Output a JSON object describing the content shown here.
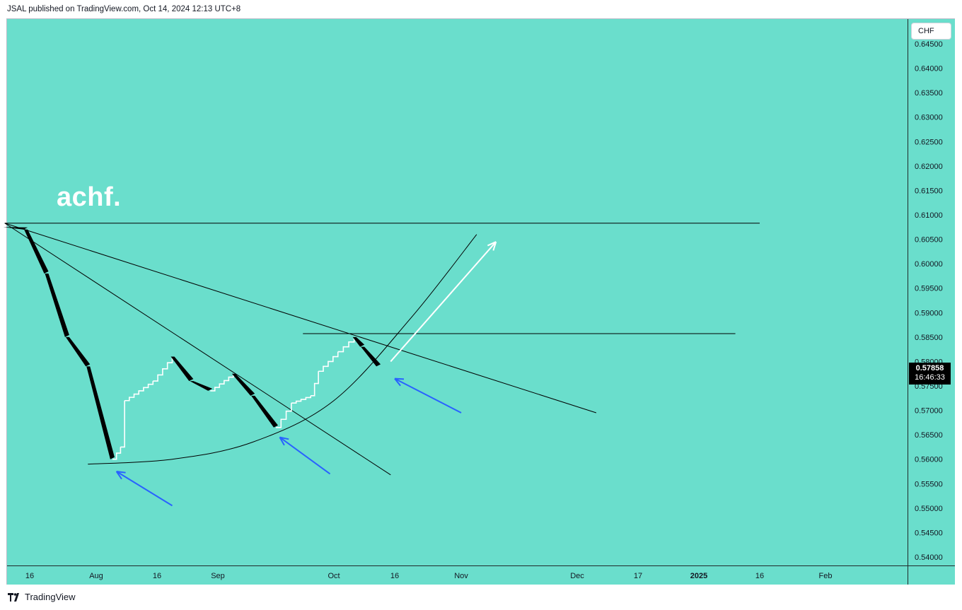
{
  "header": {
    "published_text": "JSAL published on TradingView.com, Oct 14, 2024 12:13 UTC+8"
  },
  "symbol_label": "achf.",
  "currency": "CHF",
  "last_price": {
    "value": "0.57858",
    "countdown": "16:46:33"
  },
  "footer": {
    "brand": "TradingView",
    "logo_icon": "tradingview-logo-icon"
  },
  "colors": {
    "background": "#6adecc",
    "candle": "#000000",
    "step_line": "#ffffff",
    "trend_line": "#000000",
    "blue_arrow": "#2962ff",
    "white_arrow": "#ffffff"
  },
  "chart_data": {
    "type": "line",
    "title": "",
    "xlabel": "",
    "ylabel": "",
    "y_axis_ticks": [
      "0.64500",
      "0.64000",
      "0.63500",
      "0.63000",
      "0.62500",
      "0.62000",
      "0.61500",
      "0.61000",
      "0.60500",
      "0.60000",
      "0.59500",
      "0.59000",
      "0.58500",
      "0.58000",
      "0.57500",
      "0.57000",
      "0.56500",
      "0.56000",
      "0.55500",
      "0.55000",
      "0.54500",
      "0.54000"
    ],
    "x_axis_ticks": [
      "16",
      "Aug",
      "16",
      "Sep",
      "Oct",
      "16",
      "Nov",
      "Dec",
      "17",
      "2025",
      "16",
      "Feb"
    ],
    "ylim": [
      0.5395,
      0.6455
    ],
    "grid": false,
    "price_series_approx": [
      {
        "t": "2024-07-10",
        "v": 0.6075
      },
      {
        "t": "2024-07-15",
        "v": 0.607
      },
      {
        "t": "2024-07-20",
        "v": 0.598
      },
      {
        "t": "2024-07-25",
        "v": 0.585
      },
      {
        "t": "2024-07-30",
        "v": 0.579
      },
      {
        "t": "2024-08-05",
        "v": 0.56
      },
      {
        "t": "2024-08-07",
        "v": 0.5625
      },
      {
        "t": "2024-08-08",
        "v": 0.572
      },
      {
        "t": "2024-08-15",
        "v": 0.576
      },
      {
        "t": "2024-08-20",
        "v": 0.581
      },
      {
        "t": "2024-08-25",
        "v": 0.576
      },
      {
        "t": "2024-08-30",
        "v": 0.574
      },
      {
        "t": "2024-09-05",
        "v": 0.5775
      },
      {
        "t": "2024-09-10",
        "v": 0.573
      },
      {
        "t": "2024-09-16",
        "v": 0.5665
      },
      {
        "t": "2024-09-20",
        "v": 0.5715
      },
      {
        "t": "2024-09-25",
        "v": 0.573
      },
      {
        "t": "2024-09-27",
        "v": 0.578
      },
      {
        "t": "2024-10-02",
        "v": 0.582
      },
      {
        "t": "2024-10-06",
        "v": 0.585
      },
      {
        "t": "2024-10-08",
        "v": 0.583
      },
      {
        "t": "2024-10-12",
        "v": 0.579
      }
    ],
    "drawings": [
      {
        "kind": "horizontal_line",
        "price": 0.6083,
        "from": "2024-07-10",
        "to": "2025-01-16"
      },
      {
        "kind": "horizontal_line",
        "price": 0.5857,
        "from": "2024-09-23",
        "to": "2025-01-10"
      },
      {
        "kind": "trend_line",
        "from": {
          "t": "2024-07-10",
          "v": 0.6083
        },
        "to": {
          "t": "2024-10-15",
          "v": 0.5568
        }
      },
      {
        "kind": "trend_line",
        "from": {
          "t": "2024-07-10",
          "v": 0.6083
        },
        "to": {
          "t": "2024-12-06",
          "v": 0.5695
        }
      },
      {
        "kind": "arc",
        "points": [
          {
            "t": "2024-07-30",
            "v": 0.559
          },
          {
            "t": "2024-08-20",
            "v": 0.56
          },
          {
            "t": "2024-09-10",
            "v": 0.5635
          },
          {
            "t": "2024-10-01",
            "v": 0.572
          },
          {
            "t": "2024-10-20",
            "v": 0.589
          },
          {
            "t": "2024-11-05",
            "v": 0.606
          }
        ]
      },
      {
        "kind": "arrow",
        "color": "blue",
        "from": {
          "t": "2024-08-20",
          "v": 0.5505
        },
        "to": {
          "t": "2024-08-06",
          "v": 0.5575
        }
      },
      {
        "kind": "arrow",
        "color": "blue",
        "from": {
          "t": "2024-09-30",
          "v": 0.557
        },
        "to": {
          "t": "2024-09-17",
          "v": 0.5645
        }
      },
      {
        "kind": "arrow",
        "color": "blue",
        "from": {
          "t": "2024-11-01",
          "v": 0.5695
        },
        "to": {
          "t": "2024-10-16",
          "v": 0.5765
        }
      },
      {
        "kind": "arrow",
        "color": "white",
        "from": {
          "t": "2024-10-15",
          "v": 0.58
        },
        "to": {
          "t": "2024-11-10",
          "v": 0.6045
        }
      }
    ]
  }
}
